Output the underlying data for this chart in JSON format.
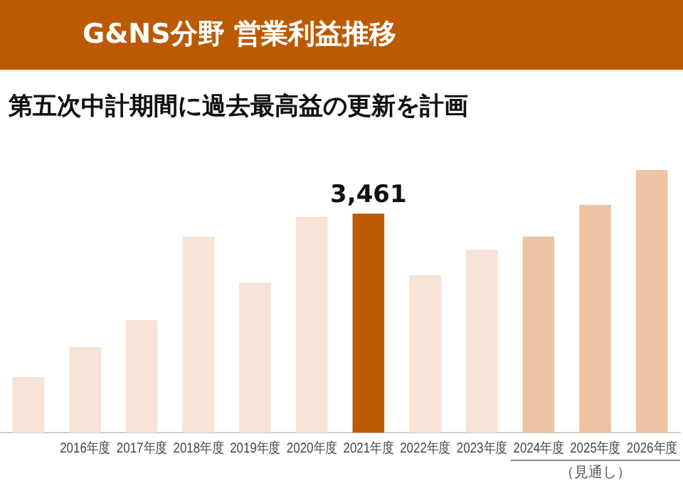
{
  "chart_data": {
    "type": "bar",
    "title": "G&NS分野 営業利益推移",
    "subtitle": "第五次中計期間に過去最高益の更新を計画",
    "categories": [
      null,
      "2016年度",
      "2017年度",
      "2018年度",
      "2019年度",
      "2020年度",
      "2021年度",
      "2022年度",
      "2023年度",
      "2024年度",
      "2025年度",
      "2026年度"
    ],
    "values": [
      880,
      1350,
      1780,
      3100,
      2370,
      3410,
      3461,
      2490,
      2890,
      3100,
      3600,
      4150
    ],
    "colors": [
      "#f7e3d7",
      "#f7e3d7",
      "#f7e3d7",
      "#f7e3d7",
      "#f7e3d7",
      "#f7e3d7",
      "#bb5a00",
      "#f7e3d7",
      "#f7e3d7",
      "#ecc4a3",
      "#ecc4a3",
      "#ecc4a3"
    ],
    "value_labels": [
      null,
      null,
      null,
      null,
      null,
      null,
      "3,461",
      null,
      null,
      null,
      null,
      null
    ],
    "tick_labels": "x",
    "grid": false,
    "legend": false,
    "annotations": [
      "（見通し）"
    ]
  }
}
